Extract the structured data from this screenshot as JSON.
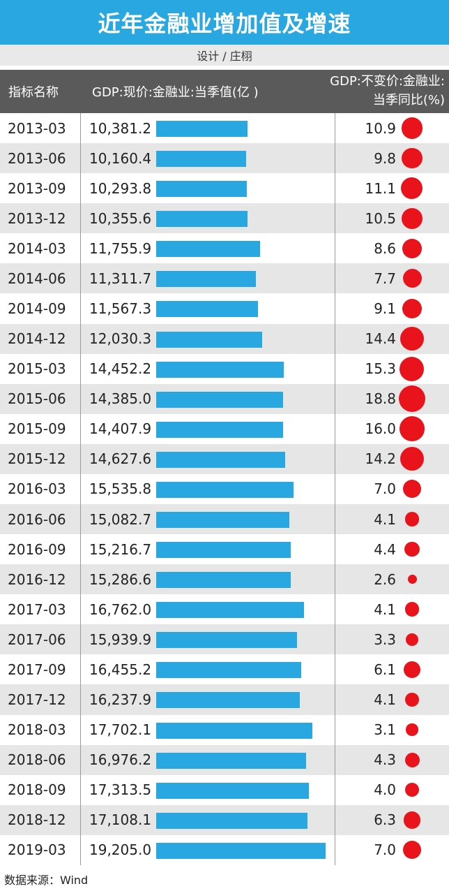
{
  "title": "近年金融业增加值及增速",
  "designer": "设计 / 庄栩",
  "source": "数据来源：Wind",
  "colors": {
    "title_bg": "#29a7e1",
    "bar": "#29a7e1",
    "dot": "#e8131b",
    "header_bg": "#5a5a5a",
    "alt_row": "#e6e6e6"
  },
  "table": {
    "headers": [
      "指标名称",
      "GDP:现价:金融业:当季值(亿 )",
      "GDP:不变价:金融业:当季同比(%)"
    ]
  },
  "chart_data": {
    "type": "table",
    "columns": [
      "指标名称",
      "GDP:现价:金融业:当季值(亿 )",
      "GDP:不变价:金融业:当季同比(%)"
    ],
    "rows": [
      {
        "period": "2013-03",
        "gdp": "10,381.2",
        "gdp_value": 10381.2,
        "growth": "10.9",
        "growth_value": 10.9
      },
      {
        "period": "2013-06",
        "gdp": "10,160.4",
        "gdp_value": 10160.4,
        "growth": "9.8",
        "growth_value": 9.8
      },
      {
        "period": "2013-09",
        "gdp": "10,293.8",
        "gdp_value": 10293.8,
        "growth": "11.1",
        "growth_value": 11.1
      },
      {
        "period": "2013-12",
        "gdp": "10,355.6",
        "gdp_value": 10355.6,
        "growth": "10.5",
        "growth_value": 10.5
      },
      {
        "period": "2014-03",
        "gdp": "11,755.9",
        "gdp_value": 11755.9,
        "growth": "8.6",
        "growth_value": 8.6
      },
      {
        "period": "2014-06",
        "gdp": "11,311.7",
        "gdp_value": 11311.7,
        "growth": "7.7",
        "growth_value": 7.7
      },
      {
        "period": "2014-09",
        "gdp": "11,567.3",
        "gdp_value": 11567.3,
        "growth": "9.1",
        "growth_value": 9.1
      },
      {
        "period": "2014-12",
        "gdp": "12,030.3",
        "gdp_value": 12030.3,
        "growth": "14.4",
        "growth_value": 14.4
      },
      {
        "period": "2015-03",
        "gdp": "14,452.2",
        "gdp_value": 14452.2,
        "growth": "15.3",
        "growth_value": 15.3
      },
      {
        "period": "2015-06",
        "gdp": "14,385.0",
        "gdp_value": 14385.0,
        "growth": "18.8",
        "growth_value": 18.8
      },
      {
        "period": "2015-09",
        "gdp": "14,407.9",
        "gdp_value": 14407.9,
        "growth": "16.0",
        "growth_value": 16.0
      },
      {
        "period": "2015-12",
        "gdp": "14,627.6",
        "gdp_value": 14627.6,
        "growth": "14.2",
        "growth_value": 14.2
      },
      {
        "period": "2016-03",
        "gdp": "15,535.8",
        "gdp_value": 15535.8,
        "growth": "7.0",
        "growth_value": 7.0
      },
      {
        "period": "2016-06",
        "gdp": "15,082.7",
        "gdp_value": 15082.7,
        "growth": "4.1",
        "growth_value": 4.1
      },
      {
        "period": "2016-09",
        "gdp": "15,216.7",
        "gdp_value": 15216.7,
        "growth": "4.4",
        "growth_value": 4.4
      },
      {
        "period": "2016-12",
        "gdp": "15,286.6",
        "gdp_value": 15286.6,
        "growth": "2.6",
        "growth_value": 2.6
      },
      {
        "period": "2017-03",
        "gdp": "16,762.0",
        "gdp_value": 16762.0,
        "growth": "4.1",
        "growth_value": 4.1
      },
      {
        "period": "2017-06",
        "gdp": "15,939.9",
        "gdp_value": 15939.9,
        "growth": "3.3",
        "growth_value": 3.3
      },
      {
        "period": "2017-09",
        "gdp": "16,455.2",
        "gdp_value": 16455.2,
        "growth": "6.1",
        "growth_value": 6.1
      },
      {
        "period": "2017-12",
        "gdp": "16,237.9",
        "gdp_value": 16237.9,
        "growth": "4.1",
        "growth_value": 4.1
      },
      {
        "period": "2018-03",
        "gdp": "17,702.1",
        "gdp_value": 17702.1,
        "growth": "3.1",
        "growth_value": 3.1
      },
      {
        "period": "2018-06",
        "gdp": "16,976.2",
        "gdp_value": 16976.2,
        "growth": "4.3",
        "growth_value": 4.3
      },
      {
        "period": "2018-09",
        "gdp": "17,313.5",
        "gdp_value": 17313.5,
        "growth": "4.0",
        "growth_value": 4.0
      },
      {
        "period": "2018-12",
        "gdp": "17,108.1",
        "gdp_value": 17108.1,
        "growth": "6.3",
        "growth_value": 6.3
      },
      {
        "period": "2019-03",
        "gdp": "19,205.0",
        "gdp_value": 19205.0,
        "growth": "7.0",
        "growth_value": 7.0
      }
    ]
  }
}
